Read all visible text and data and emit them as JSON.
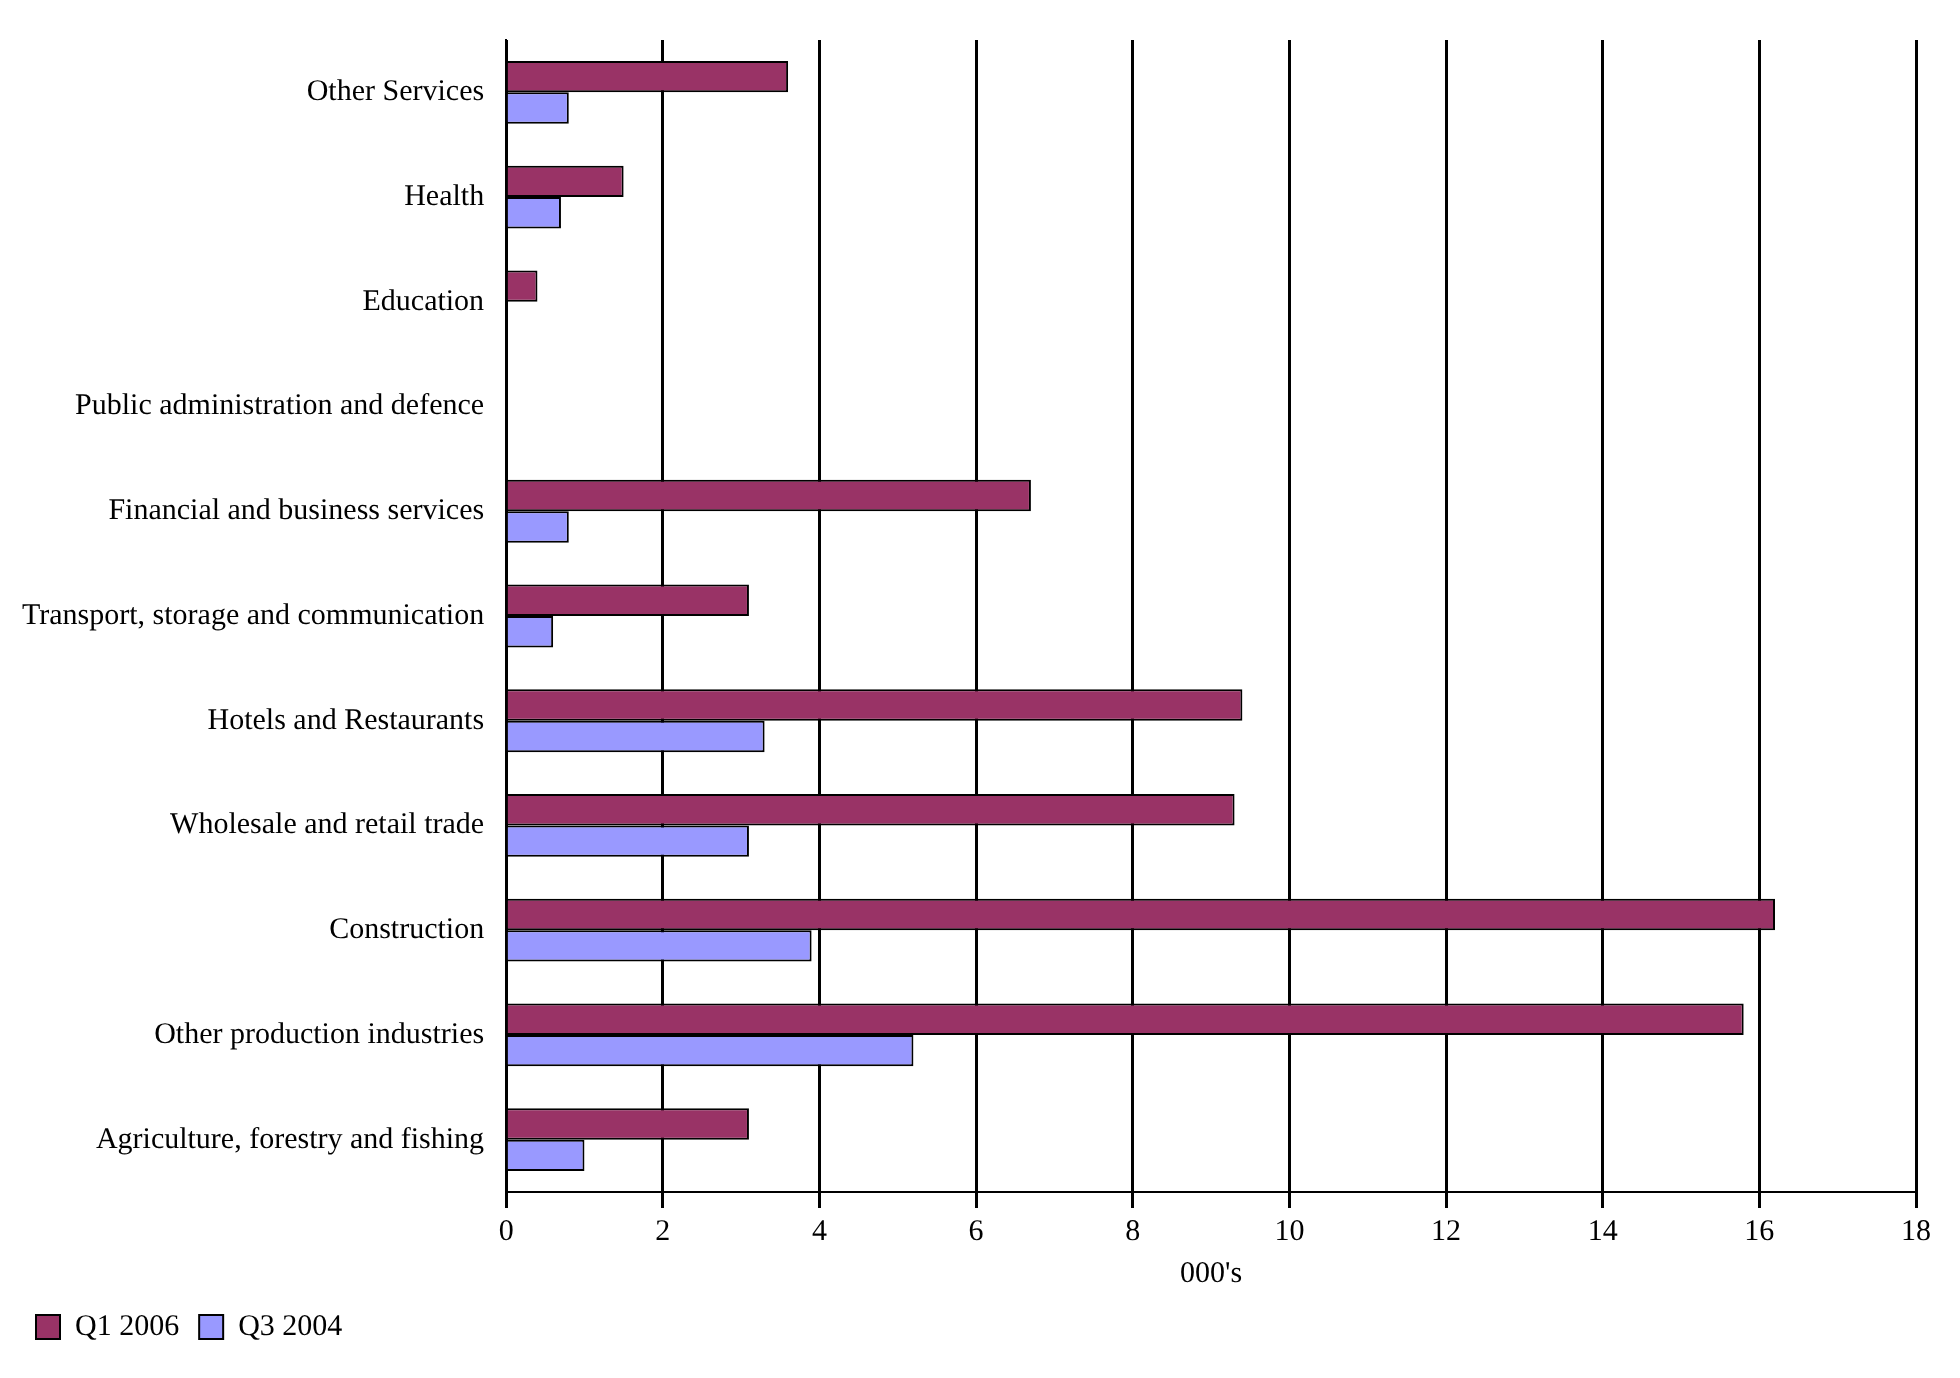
{
  "chart_data": {
    "type": "bar",
    "orientation": "horizontal",
    "xlabel": "000's",
    "categories": [
      "Other Services",
      "Health",
      "Education",
      "Public administration and defence",
      "Financial and business services",
      "Transport, storage and communication",
      "Hotels and Restaurants",
      "Wholesale and retail trade",
      "Construction",
      "Other production industries",
      "Agriculture, forestry and fishing"
    ],
    "series": [
      {
        "name": "Q1 2006",
        "color": "#993366",
        "values": [
          3.6,
          1.5,
          0.4,
          0,
          6.7,
          3.1,
          9.4,
          9.3,
          16.2,
          15.8,
          3.1
        ]
      },
      {
        "name": "Q3 2004",
        "color": "#9999ff",
        "values": [
          0.8,
          0.7,
          0,
          0,
          0.8,
          0.6,
          3.3,
          3.1,
          3.9,
          5.2,
          1.0
        ]
      }
    ],
    "xlim": [
      0,
      18
    ],
    "xticks": [
      0,
      2,
      4,
      6,
      8,
      10,
      12,
      14,
      16,
      18
    ],
    "grid": "x",
    "legend": "bottom left"
  }
}
